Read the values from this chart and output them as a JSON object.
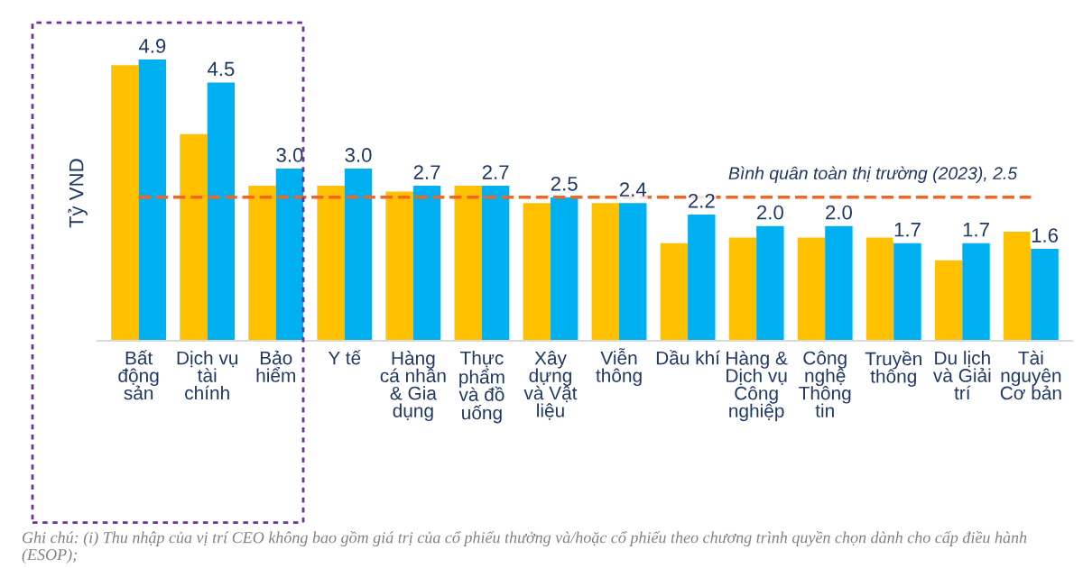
{
  "chart_data": {
    "type": "bar",
    "ylabel": "Tỷ VND",
    "categories": [
      "Bất\nđộng\nsản",
      "Dịch vụ\ntài\nchính",
      "Bảo\nhiểm",
      "Y tế",
      "Hàng\ncá nhân\n& Gia\ndụng",
      "Thực\nphẩm\nvà đồ\nuống",
      "Xây\ndựng\nvà Vật\nliệu",
      "Viễn\nthông",
      "Dầu khí",
      "Hàng &\nDịch vụ\nCông\nnghiệp",
      "Công\nnghệ\nThông\ntin",
      "Truyền\nthông",
      "Du lịch\nvà Giải\ntrí",
      "Tài\nnguyên\nCơ bản"
    ],
    "series": [
      {
        "color": "#ffc000",
        "values": [
          4.8,
          3.6,
          2.7,
          2.7,
          2.6,
          2.7,
          2.4,
          2.4,
          1.7,
          1.8,
          1.8,
          1.8,
          1.4,
          1.9
        ]
      },
      {
        "color": "#00b0f0",
        "values": [
          4.9,
          4.5,
          3.0,
          3.0,
          2.7,
          2.7,
          2.5,
          2.4,
          2.2,
          2.0,
          2.0,
          1.7,
          1.7,
          1.6
        ],
        "value_labels": [
          "4.9",
          "4.5",
          "3.0",
          "3.0",
          "2.7",
          "2.7",
          "2.5",
          "2.4",
          "2.2",
          "2.0",
          "2.0",
          "1.7",
          "1.7",
          "1.6"
        ]
      }
    ],
    "tick_labels": "x",
    "grid": false,
    "legend": false,
    "ref_lines": [
      {
        "axis": "y",
        "value": 2.5,
        "label": "Bình quân toàn thị trường (2023), 2.5",
        "color": "#f26522",
        "line_style": "dashed"
      }
    ],
    "annotations": [
      "Ghi chú: (i) Thu nhập của vị trí CEO không bao gồm giá trị của cổ phiếu thưởng và/hoặc cổ phiếu theo chương trình quyền chọn dành cho cấp điều hành (ESOP);"
    ]
  }
}
